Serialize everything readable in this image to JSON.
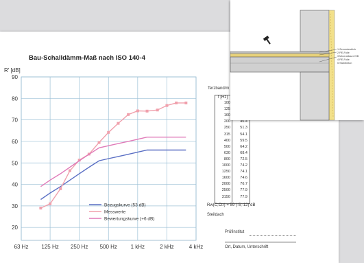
{
  "chart_data": {
    "type": "line",
    "title": "Bau-Schalldämm-Maß nach ISO 140-4",
    "ylabel": "R' [dB]",
    "xlabel": "",
    "x_ticks": [
      "63 Hz",
      "125 Hz",
      "250 Hz",
      "500 Hz",
      "1 kHz",
      "2 kHz",
      "4 kHz"
    ],
    "ylim": [
      14,
      90
    ],
    "y_ticks": [
      20,
      30,
      40,
      50,
      60,
      70,
      80,
      90
    ],
    "grid": true,
    "legend_position": "bottom-right",
    "series": [
      {
        "name": "Bezugskurve (53 dB)",
        "color": "#5a6fc4",
        "points": [
          [
            100,
            33
          ],
          [
            125,
            36
          ],
          [
            160,
            39
          ],
          [
            200,
            42
          ],
          [
            250,
            45
          ],
          [
            315,
            48
          ],
          [
            400,
            51
          ],
          [
            500,
            52
          ],
          [
            630,
            53
          ],
          [
            800,
            54
          ],
          [
            1000,
            55
          ],
          [
            1250,
            56
          ],
          [
            1600,
            56
          ],
          [
            2000,
            56
          ],
          [
            2500,
            56
          ],
          [
            3150,
            56
          ]
        ]
      },
      {
        "name": "Messwerte",
        "color": "#f0a0ac",
        "marker": "square",
        "points": [
          [
            100,
            29
          ],
          [
            125,
            31
          ],
          [
            160,
            38
          ],
          [
            200,
            46.4
          ],
          [
            250,
            51.3
          ],
          [
            315,
            54.1
          ],
          [
            400,
            59.5
          ],
          [
            500,
            64.2
          ],
          [
            630,
            68.4
          ],
          [
            800,
            72.5
          ],
          [
            1000,
            74.2
          ],
          [
            1250,
            74.1
          ],
          [
            1600,
            74.6
          ],
          [
            2000,
            76.7
          ],
          [
            2500,
            77.9
          ],
          [
            3150,
            77.9
          ]
        ]
      },
      {
        "name": "Bewertungskurve (+6 dB)",
        "color": "#e07ab8",
        "points": [
          [
            100,
            39
          ],
          [
            125,
            42
          ],
          [
            160,
            45
          ],
          [
            200,
            48
          ],
          [
            250,
            51
          ],
          [
            315,
            54
          ],
          [
            400,
            57
          ],
          [
            500,
            58
          ],
          [
            630,
            59
          ],
          [
            800,
            60
          ],
          [
            1000,
            61
          ],
          [
            1250,
            62
          ],
          [
            1600,
            62
          ],
          [
            2000,
            62
          ],
          [
            2500,
            62
          ],
          [
            3150,
            62
          ]
        ]
      }
    ]
  },
  "table": {
    "header": "Terzband/m",
    "col_header": "f [Hz]",
    "freqs": [
      "100",
      "125",
      "160",
      "200",
      "250",
      "315",
      "400",
      "500",
      "630",
      "800",
      "1000",
      "1250",
      "1600",
      "2000",
      "2500",
      "3150"
    ],
    "values": [
      "",
      "",
      "",
      "46.4",
      "51.3",
      "54.1",
      "59.5",
      "64.2",
      "68.4",
      "72.5",
      "74.2",
      "74.1",
      "74.6",
      "76.7",
      "77.9",
      "77.9"
    ]
  },
  "rating": "Rw(C;Ctr) = 59 (-5;-12) dB",
  "element": "Steildach",
  "signature": {
    "label": "Prüfinstitut",
    "date_label": "Ort, Datum, Unterschrift"
  },
  "detail_legend": [
    "1 Zementestrich",
    "2 PE-Folie",
    "3 Mineralfaser ISB",
    "4 PE-Folie",
    "5 Stahlbeton"
  ]
}
